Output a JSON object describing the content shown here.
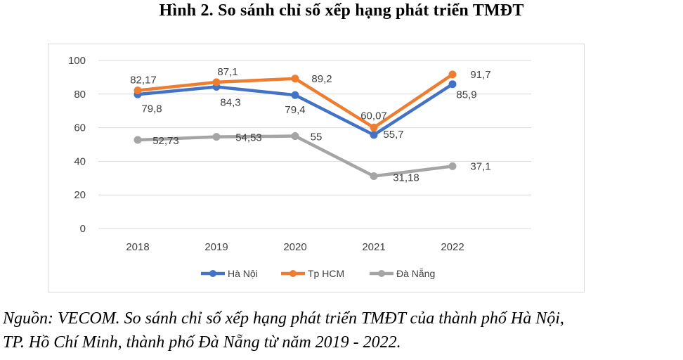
{
  "header": {
    "title": "Hình 2. So sánh chỉ số xếp hạng phát triển TMĐT"
  },
  "footer": {
    "source_line1": "Nguồn: VECOM. So sánh chỉ số xếp hạng phát triển TMĐT của thành phố Hà Nội,",
    "source_line2": "TP. Hồ Chí Minh, thành phố Đà Nẵng từ năm 2019 - 2022."
  },
  "chart_data": {
    "type": "line",
    "title": "",
    "xlabel": "",
    "ylabel": "",
    "categories": [
      "2018",
      "2019",
      "2020",
      "2021",
      "2022"
    ],
    "ylim": [
      0,
      100
    ],
    "yticks": [
      0,
      20,
      40,
      60,
      80,
      100
    ],
    "grid": true,
    "legend_position": "bottom",
    "series": [
      {
        "name": "Hà Nội",
        "color": "#4472c4",
        "values": [
          79.8,
          84.3,
          79.4,
          55.7,
          85.9
        ],
        "labels": [
          "79,8",
          "84,3",
          "79,4",
          "55,7",
          "85,9"
        ]
      },
      {
        "name": "Tp HCM",
        "color": "#ed7d31",
        "values": [
          82.17,
          87.1,
          89.2,
          60.07,
          91.7
        ],
        "labels": [
          "82,17",
          "87,1",
          "89,2",
          "60,07",
          "91,7"
        ]
      },
      {
        "name": "Đà Nẵng",
        "color": "#a5a5a5",
        "values": [
          52.73,
          54.53,
          55,
          31.18,
          37.1
        ],
        "labels": [
          "52,73",
          "54,53",
          "55",
          "31,18",
          "37,1"
        ]
      }
    ]
  }
}
